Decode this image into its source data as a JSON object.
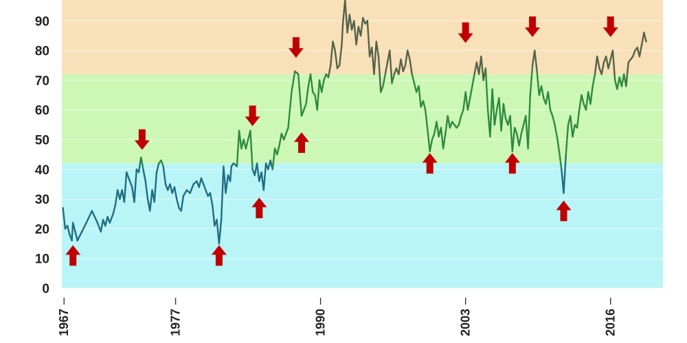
{
  "chart_data": {
    "type": "line",
    "title": "",
    "xlabel": "",
    "ylabel": "",
    "xlim": [
      1966.8,
      2020.7
    ],
    "ylim": [
      0,
      97
    ],
    "yticks": [
      0,
      10,
      20,
      30,
      40,
      50,
      60,
      70,
      80,
      90
    ],
    "ytick_labels": [
      "0",
      "10",
      "20",
      "30",
      "40",
      "50",
      "60",
      "70",
      "80",
      "90"
    ],
    "xticks": [
      1967,
      1977,
      1990,
      2003,
      2016
    ],
    "xtick_labels": [
      "1967",
      "1977",
      "1990",
      "2003",
      "2016"
    ],
    "grid": true,
    "bands": [
      {
        "from": 0,
        "to": 42,
        "color": "#b9f4f7"
      },
      {
        "from": 42,
        "to": 72,
        "color": "#ccf7b5"
      },
      {
        "from": 72,
        "to": 97,
        "color": "#f8e0b8"
      }
    ],
    "line_colors": {
      "low": "#1f6d82",
      "mid": "#2c8a3f",
      "high": "#55624a"
    },
    "series": [
      {
        "name": "",
        "points": [
          [
            1966.9,
            27
          ],
          [
            1967.1,
            20
          ],
          [
            1967.3,
            21
          ],
          [
            1967.5,
            18
          ],
          [
            1967.7,
            16
          ],
          [
            1967.8,
            22
          ],
          [
            1968.0,
            19
          ],
          [
            1968.2,
            16
          ],
          [
            1968.6,
            19
          ],
          [
            1969.0,
            22
          ],
          [
            1969.5,
            26
          ],
          [
            1970.0,
            22
          ],
          [
            1970.3,
            19
          ],
          [
            1970.5,
            23
          ],
          [
            1970.7,
            21
          ],
          [
            1970.9,
            24
          ],
          [
            1971.1,
            22
          ],
          [
            1971.4,
            25
          ],
          [
            1971.6,
            28
          ],
          [
            1971.8,
            33
          ],
          [
            1972.0,
            30
          ],
          [
            1972.2,
            33
          ],
          [
            1972.4,
            29
          ],
          [
            1972.6,
            39
          ],
          [
            1972.9,
            36
          ],
          [
            1973.1,
            34
          ],
          [
            1973.3,
            29
          ],
          [
            1973.5,
            40
          ],
          [
            1973.7,
            39
          ],
          [
            1973.9,
            44
          ],
          [
            1974.1,
            40
          ],
          [
            1974.3,
            36
          ],
          [
            1974.5,
            30
          ],
          [
            1974.7,
            26
          ],
          [
            1974.9,
            33
          ],
          [
            1975.1,
            29
          ],
          [
            1975.3,
            39
          ],
          [
            1975.5,
            42
          ],
          [
            1975.7,
            43
          ],
          [
            1975.9,
            41
          ],
          [
            1976.1,
            35
          ],
          [
            1976.3,
            33
          ],
          [
            1976.5,
            35
          ],
          [
            1976.7,
            32
          ],
          [
            1976.9,
            34
          ],
          [
            1977.1,
            30
          ],
          [
            1977.3,
            27
          ],
          [
            1977.5,
            26
          ],
          [
            1977.7,
            31
          ],
          [
            1978.0,
            33
          ],
          [
            1978.3,
            32
          ],
          [
            1978.6,
            35
          ],
          [
            1978.9,
            36
          ],
          [
            1979.1,
            34
          ],
          [
            1979.3,
            37
          ],
          [
            1979.5,
            35
          ],
          [
            1979.7,
            33
          ],
          [
            1979.9,
            31
          ],
          [
            1980.1,
            32
          ],
          [
            1980.3,
            28
          ],
          [
            1980.5,
            21
          ],
          [
            1980.7,
            23
          ],
          [
            1980.9,
            15
          ],
          [
            1981.1,
            23
          ],
          [
            1981.3,
            41
          ],
          [
            1981.5,
            32
          ],
          [
            1981.7,
            38
          ],
          [
            1981.9,
            36
          ],
          [
            1982.0,
            41
          ],
          [
            1982.2,
            42
          ],
          [
            1982.5,
            41
          ],
          [
            1982.7,
            53
          ],
          [
            1982.9,
            47
          ],
          [
            1983.1,
            50
          ],
          [
            1983.3,
            47
          ],
          [
            1983.5,
            50
          ],
          [
            1983.7,
            53
          ],
          [
            1983.9,
            40
          ],
          [
            1984.1,
            38
          ],
          [
            1984.3,
            42
          ],
          [
            1984.5,
            36
          ],
          [
            1984.7,
            39
          ],
          [
            1984.9,
            33
          ],
          [
            1985.1,
            42
          ],
          [
            1985.3,
            40
          ],
          [
            1985.5,
            43
          ],
          [
            1985.7,
            40
          ],
          [
            1985.9,
            47
          ],
          [
            1986.1,
            45
          ],
          [
            1986.3,
            48
          ],
          [
            1986.5,
            52
          ],
          [
            1986.7,
            50
          ],
          [
            1986.9,
            52
          ],
          [
            1987.1,
            54
          ],
          [
            1987.4,
            66
          ],
          [
            1987.7,
            73
          ],
          [
            1988.0,
            72
          ],
          [
            1988.3,
            58
          ],
          [
            1988.5,
            60
          ],
          [
            1988.7,
            62
          ],
          [
            1988.9,
            68
          ],
          [
            1989.1,
            72
          ],
          [
            1989.3,
            66
          ],
          [
            1989.5,
            65
          ],
          [
            1989.7,
            60
          ],
          [
            1989.9,
            70
          ],
          [
            1990.1,
            66
          ],
          [
            1990.3,
            70
          ],
          [
            1990.5,
            72
          ],
          [
            1990.7,
            71
          ],
          [
            1990.9,
            75
          ],
          [
            1991.1,
            83
          ],
          [
            1991.3,
            80
          ],
          [
            1991.5,
            74
          ],
          [
            1991.7,
            75
          ],
          [
            1991.9,
            82
          ],
          [
            1992.0,
            89
          ],
          [
            1992.2,
            97
          ],
          [
            1992.4,
            86
          ],
          [
            1992.6,
            92
          ],
          [
            1992.8,
            87
          ],
          [
            1993.0,
            90
          ],
          [
            1993.2,
            82
          ],
          [
            1993.4,
            88
          ],
          [
            1993.6,
            85
          ],
          [
            1993.8,
            91
          ],
          [
            1994.0,
            89
          ],
          [
            1994.2,
            90
          ],
          [
            1994.4,
            78
          ],
          [
            1994.6,
            81
          ],
          [
            1994.8,
            72
          ],
          [
            1995.0,
            83
          ],
          [
            1995.2,
            78
          ],
          [
            1995.4,
            66
          ],
          [
            1995.6,
            68
          ],
          [
            1995.8,
            72
          ],
          [
            1996.0,
            76
          ],
          [
            1996.2,
            80
          ],
          [
            1996.4,
            69
          ],
          [
            1996.6,
            72
          ],
          [
            1996.8,
            74
          ],
          [
            1997.0,
            72
          ],
          [
            1997.2,
            77
          ],
          [
            1997.4,
            73
          ],
          [
            1997.6,
            75
          ],
          [
            1997.8,
            80
          ],
          [
            1998.0,
            77
          ],
          [
            1998.2,
            72
          ],
          [
            1998.4,
            69
          ],
          [
            1998.6,
            66
          ],
          [
            1998.8,
            68
          ],
          [
            1999.0,
            61
          ],
          [
            1999.2,
            63
          ],
          [
            1999.4,
            60
          ],
          [
            1999.6,
            53
          ],
          [
            1999.8,
            46
          ],
          [
            2000.0,
            50
          ],
          [
            2000.2,
            52
          ],
          [
            2000.4,
            56
          ],
          [
            2000.6,
            51
          ],
          [
            2000.8,
            54
          ],
          [
            2001.0,
            47
          ],
          [
            2001.2,
            52
          ],
          [
            2001.4,
            58
          ],
          [
            2001.6,
            54
          ],
          [
            2001.8,
            56
          ],
          [
            2002.0,
            55
          ],
          [
            2002.2,
            54
          ],
          [
            2002.4,
            55
          ],
          [
            2002.6,
            58
          ],
          [
            2002.8,
            60
          ],
          [
            2003.0,
            66
          ],
          [
            2003.2,
            60
          ],
          [
            2003.4,
            64
          ],
          [
            2003.6,
            68
          ],
          [
            2003.8,
            72
          ],
          [
            2004.0,
            76
          ],
          [
            2004.2,
            72
          ],
          [
            2004.4,
            78
          ],
          [
            2004.6,
            70
          ],
          [
            2004.8,
            74
          ],
          [
            2005.0,
            60
          ],
          [
            2005.2,
            51
          ],
          [
            2005.4,
            67
          ],
          [
            2005.6,
            55
          ],
          [
            2005.8,
            60
          ],
          [
            2006.0,
            64
          ],
          [
            2006.2,
            53
          ],
          [
            2006.4,
            62
          ],
          [
            2006.6,
            57
          ],
          [
            2006.8,
            55
          ],
          [
            2007.0,
            58
          ],
          [
            2007.2,
            46
          ],
          [
            2007.4,
            54
          ],
          [
            2007.6,
            52
          ],
          [
            2007.8,
            48
          ],
          [
            2008.0,
            52
          ],
          [
            2008.2,
            55
          ],
          [
            2008.4,
            58
          ],
          [
            2008.6,
            47
          ],
          [
            2008.8,
            65
          ],
          [
            2009.0,
            75
          ],
          [
            2009.2,
            80
          ],
          [
            2009.4,
            73
          ],
          [
            2009.6,
            65
          ],
          [
            2009.8,
            68
          ],
          [
            2010.0,
            64
          ],
          [
            2010.2,
            62
          ],
          [
            2010.4,
            66
          ],
          [
            2010.6,
            60
          ],
          [
            2010.8,
            58
          ],
          [
            2011.0,
            55
          ],
          [
            2011.2,
            51
          ],
          [
            2011.4,
            46
          ],
          [
            2011.6,
            40
          ],
          [
            2011.8,
            32
          ],
          [
            2012.0,
            45
          ],
          [
            2012.2,
            55
          ],
          [
            2012.4,
            58
          ],
          [
            2012.6,
            51
          ],
          [
            2012.8,
            55
          ],
          [
            2013.0,
            54
          ],
          [
            2013.2,
            60
          ],
          [
            2013.4,
            65
          ],
          [
            2013.6,
            62
          ],
          [
            2013.8,
            60
          ],
          [
            2014.0,
            66
          ],
          [
            2014.2,
            62
          ],
          [
            2014.4,
            68
          ],
          [
            2014.6,
            72
          ],
          [
            2014.8,
            78
          ],
          [
            2015.0,
            74
          ],
          [
            2015.2,
            72
          ],
          [
            2015.4,
            76
          ],
          [
            2015.6,
            78
          ],
          [
            2015.8,
            74
          ],
          [
            2016.0,
            77
          ],
          [
            2016.2,
            80
          ],
          [
            2016.4,
            70
          ],
          [
            2016.6,
            67
          ],
          [
            2016.8,
            71
          ],
          [
            2017.0,
            68
          ],
          [
            2017.2,
            72
          ],
          [
            2017.4,
            68
          ],
          [
            2017.6,
            76
          ],
          [
            2017.8,
            77
          ],
          [
            2018.0,
            78
          ],
          [
            2018.2,
            80
          ],
          [
            2018.4,
            81
          ],
          [
            2018.6,
            78
          ],
          [
            2018.8,
            82
          ],
          [
            2019.0,
            86
          ],
          [
            2019.2,
            83
          ]
        ]
      }
    ],
    "annotations": [
      {
        "x": 1967.8,
        "y": 11,
        "direction": "up",
        "color": "#c00000"
      },
      {
        "x": 1974.0,
        "y": 50,
        "direction": "down",
        "color": "#c00000"
      },
      {
        "x": 1980.9,
        "y": 11,
        "direction": "up",
        "color": "#c00000"
      },
      {
        "x": 1983.9,
        "y": 58,
        "direction": "down",
        "color": "#c00000"
      },
      {
        "x": 1984.5,
        "y": 27,
        "direction": "up",
        "color": "#c00000"
      },
      {
        "x": 1987.8,
        "y": 81,
        "direction": "down",
        "color": "#c00000"
      },
      {
        "x": 1988.3,
        "y": 49,
        "direction": "up",
        "color": "#c00000"
      },
      {
        "x": 1999.8,
        "y": 42,
        "direction": "up",
        "color": "#c00000"
      },
      {
        "x": 2003.0,
        "y": 86,
        "direction": "down",
        "color": "#c00000"
      },
      {
        "x": 2007.2,
        "y": 42,
        "direction": "up",
        "color": "#c00000"
      },
      {
        "x": 2009.0,
        "y": 88,
        "direction": "down",
        "color": "#c00000"
      },
      {
        "x": 2011.8,
        "y": 26,
        "direction": "up",
        "color": "#c00000"
      },
      {
        "x": 2016.0,
        "y": 88,
        "direction": "down",
        "color": "#c00000"
      }
    ]
  }
}
